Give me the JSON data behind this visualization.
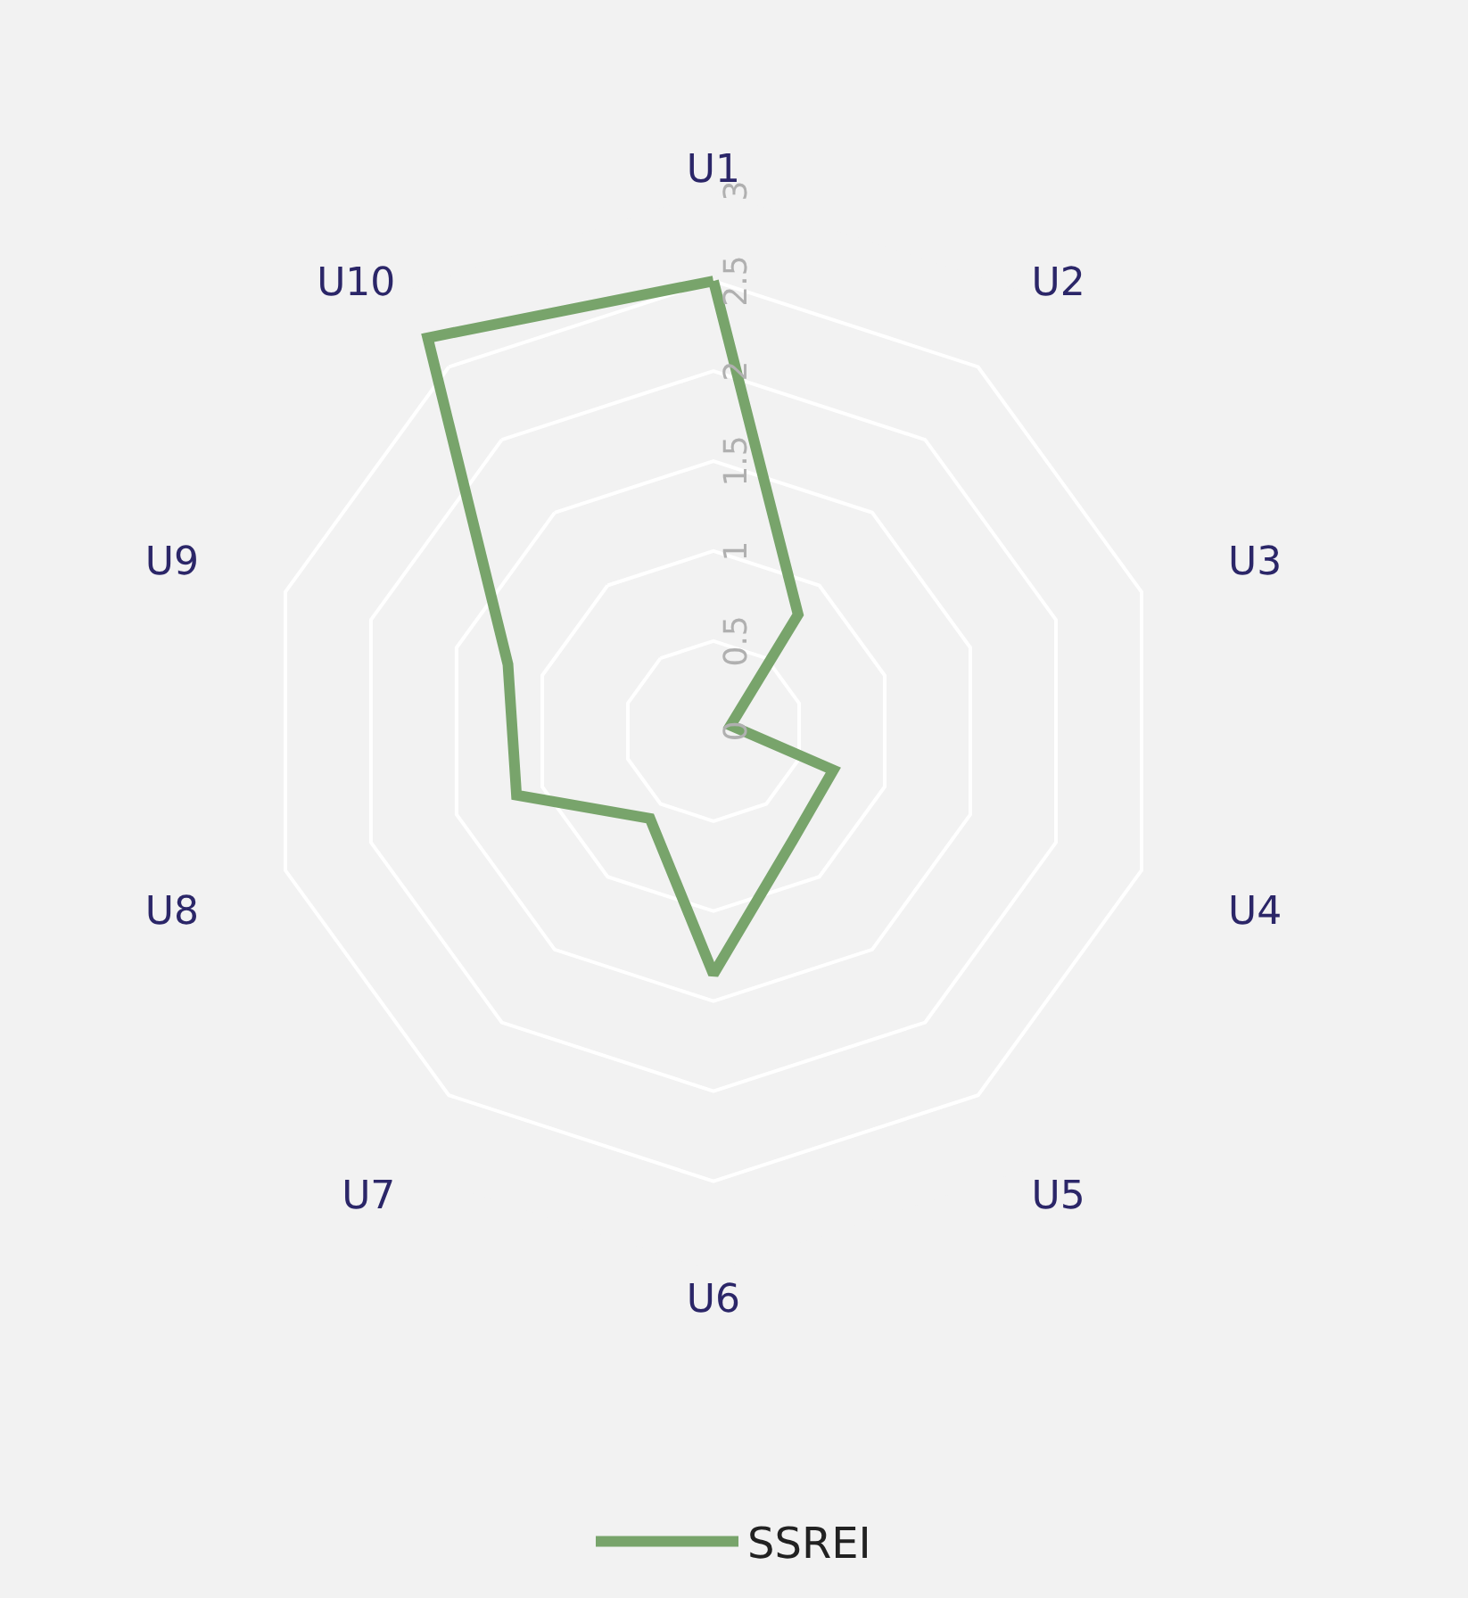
{
  "chart_data": {
    "type": "radar",
    "categories": [
      "U1",
      "U2",
      "U3",
      "U4",
      "U5",
      "U6",
      "U7",
      "U8",
      "U9",
      "U10"
    ],
    "series": [
      {
        "name": "SSREI",
        "color": "#78a46b",
        "values": [
          2.5,
          0.8,
          0.1,
          0.7,
          0.75,
          1.35,
          0.6,
          1.15,
          1.2,
          2.7
        ]
      }
    ],
    "ylim": [
      0,
      3
    ],
    "yticks": [
      0,
      0.5,
      1,
      1.5,
      2,
      2.5,
      3
    ],
    "grid": true,
    "legend": "bottom",
    "line_style": "solid"
  }
}
